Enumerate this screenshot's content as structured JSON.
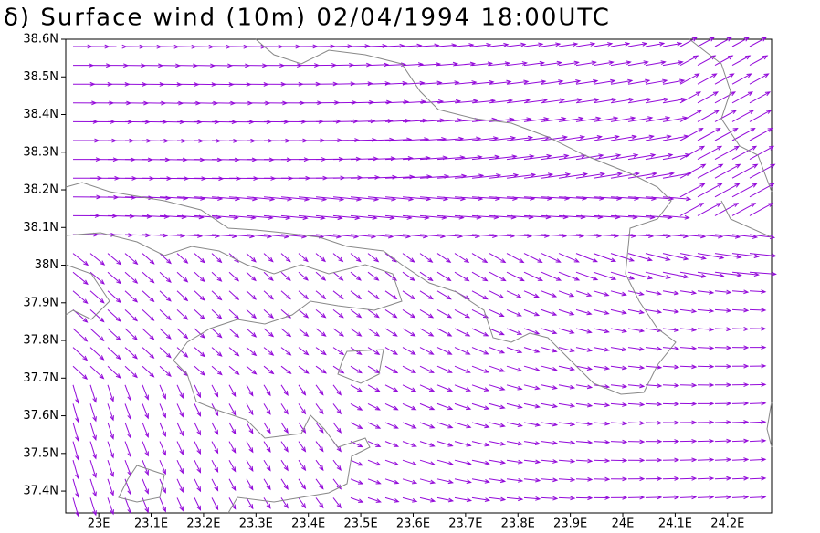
{
  "title": "δ) Surface wind (10m) 02/04/1994 18:00UTC",
  "map": {
    "xlim": [
      22.937,
      24.284
    ],
    "ylim": [
      37.342,
      38.6
    ],
    "xticks": [
      {
        "value": 23.0,
        "label": "23E"
      },
      {
        "value": 23.1,
        "label": "23.1E"
      },
      {
        "value": 23.2,
        "label": "23.2E"
      },
      {
        "value": 23.3,
        "label": "23.3E"
      },
      {
        "value": 23.4,
        "label": "23.4E"
      },
      {
        "value": 23.5,
        "label": "23.5E"
      },
      {
        "value": 23.6,
        "label": "23.6E"
      },
      {
        "value": 23.7,
        "label": "23.7E"
      },
      {
        "value": 23.8,
        "label": "23.8E"
      },
      {
        "value": 23.9,
        "label": "23.9E"
      },
      {
        "value": 24.0,
        "label": "24E"
      },
      {
        "value": 24.1,
        "label": "24.1E"
      },
      {
        "value": 24.2,
        "label": "24.2E"
      }
    ],
    "yticks": [
      {
        "value": 37.4,
        "label": "37.4N"
      },
      {
        "value": 37.5,
        "label": "37.5N"
      },
      {
        "value": 37.6,
        "label": "37.6N"
      },
      {
        "value": 37.7,
        "label": "37.7N"
      },
      {
        "value": 37.8,
        "label": "37.8N"
      },
      {
        "value": 37.9,
        "label": "37.9N"
      },
      {
        "value": 38.0,
        "label": "38N"
      },
      {
        "value": 38.1,
        "label": "38.1N"
      },
      {
        "value": 38.2,
        "label": "38.2N"
      },
      {
        "value": 38.3,
        "label": "38.3N"
      },
      {
        "value": 38.4,
        "label": "38.4N"
      },
      {
        "value": 38.5,
        "label": "38.5N"
      },
      {
        "value": 38.6,
        "label": "38.6N"
      }
    ]
  }
}
